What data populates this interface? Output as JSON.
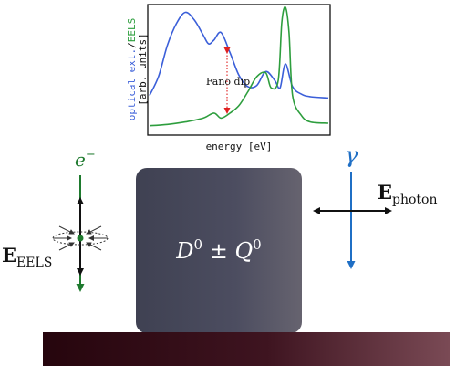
{
  "plot": {
    "ylabel_optical": "optical ext.",
    "ylabel_sep": "/",
    "ylabel_eels": "EELS",
    "ylabel_units": "[arb. units]",
    "xlabel": "energy [eV]",
    "annotation": "Fano dip",
    "colors": {
      "optical": "#3b5fd9",
      "eels": "#2e9e3e",
      "dip_arrow": "#e02020"
    }
  },
  "chart_data": {
    "type": "line",
    "xlabel": "energy [eV]",
    "ylabel": "optical ext./EELS [arb. units]",
    "grid": false,
    "series": [
      {
        "name": "optical ext.",
        "color": "#3b5fd9",
        "x": [
          0.0,
          0.05,
          0.1,
          0.15,
          0.2,
          0.25,
          0.3,
          0.33,
          0.36,
          0.4,
          0.45,
          0.5,
          0.55,
          0.6,
          0.65,
          0.7,
          0.73,
          0.76,
          0.8,
          0.85,
          0.9,
          1.0
        ],
        "y": [
          0.3,
          0.45,
          0.7,
          0.87,
          0.96,
          0.9,
          0.78,
          0.71,
          0.74,
          0.8,
          0.64,
          0.46,
          0.37,
          0.38,
          0.49,
          0.42,
          0.36,
          0.55,
          0.37,
          0.31,
          0.29,
          0.28
        ]
      },
      {
        "name": "EELS",
        "color": "#2e9e3e",
        "x": [
          0.0,
          0.1,
          0.2,
          0.3,
          0.36,
          0.4,
          0.45,
          0.5,
          0.55,
          0.6,
          0.65,
          0.68,
          0.72,
          0.74,
          0.76,
          0.78,
          0.8,
          0.85,
          0.9,
          1.0
        ],
        "y": [
          0.06,
          0.07,
          0.09,
          0.12,
          0.16,
          0.12,
          0.16,
          0.22,
          0.33,
          0.45,
          0.48,
          0.36,
          0.42,
          0.88,
          1.0,
          0.8,
          0.3,
          0.14,
          0.09,
          0.08
        ]
      }
    ]
  },
  "labels": {
    "electron": "e",
    "electron_sup": "−",
    "gamma": "γ",
    "e_photon_main": "E",
    "e_photon_sub": "photon",
    "e_eels_main": "E",
    "e_eels_sub": "EELS",
    "particle_d": "D",
    "particle_zero": "0",
    "particle_pm": " ± ",
    "particle_q": "Q",
    "colors": {
      "electron": "#1e7a2e",
      "photon": "#1f6fc5",
      "particle": "#4a4b5e",
      "substrate_dark": "#2a0810",
      "substrate_light": "#6b3a45"
    }
  }
}
